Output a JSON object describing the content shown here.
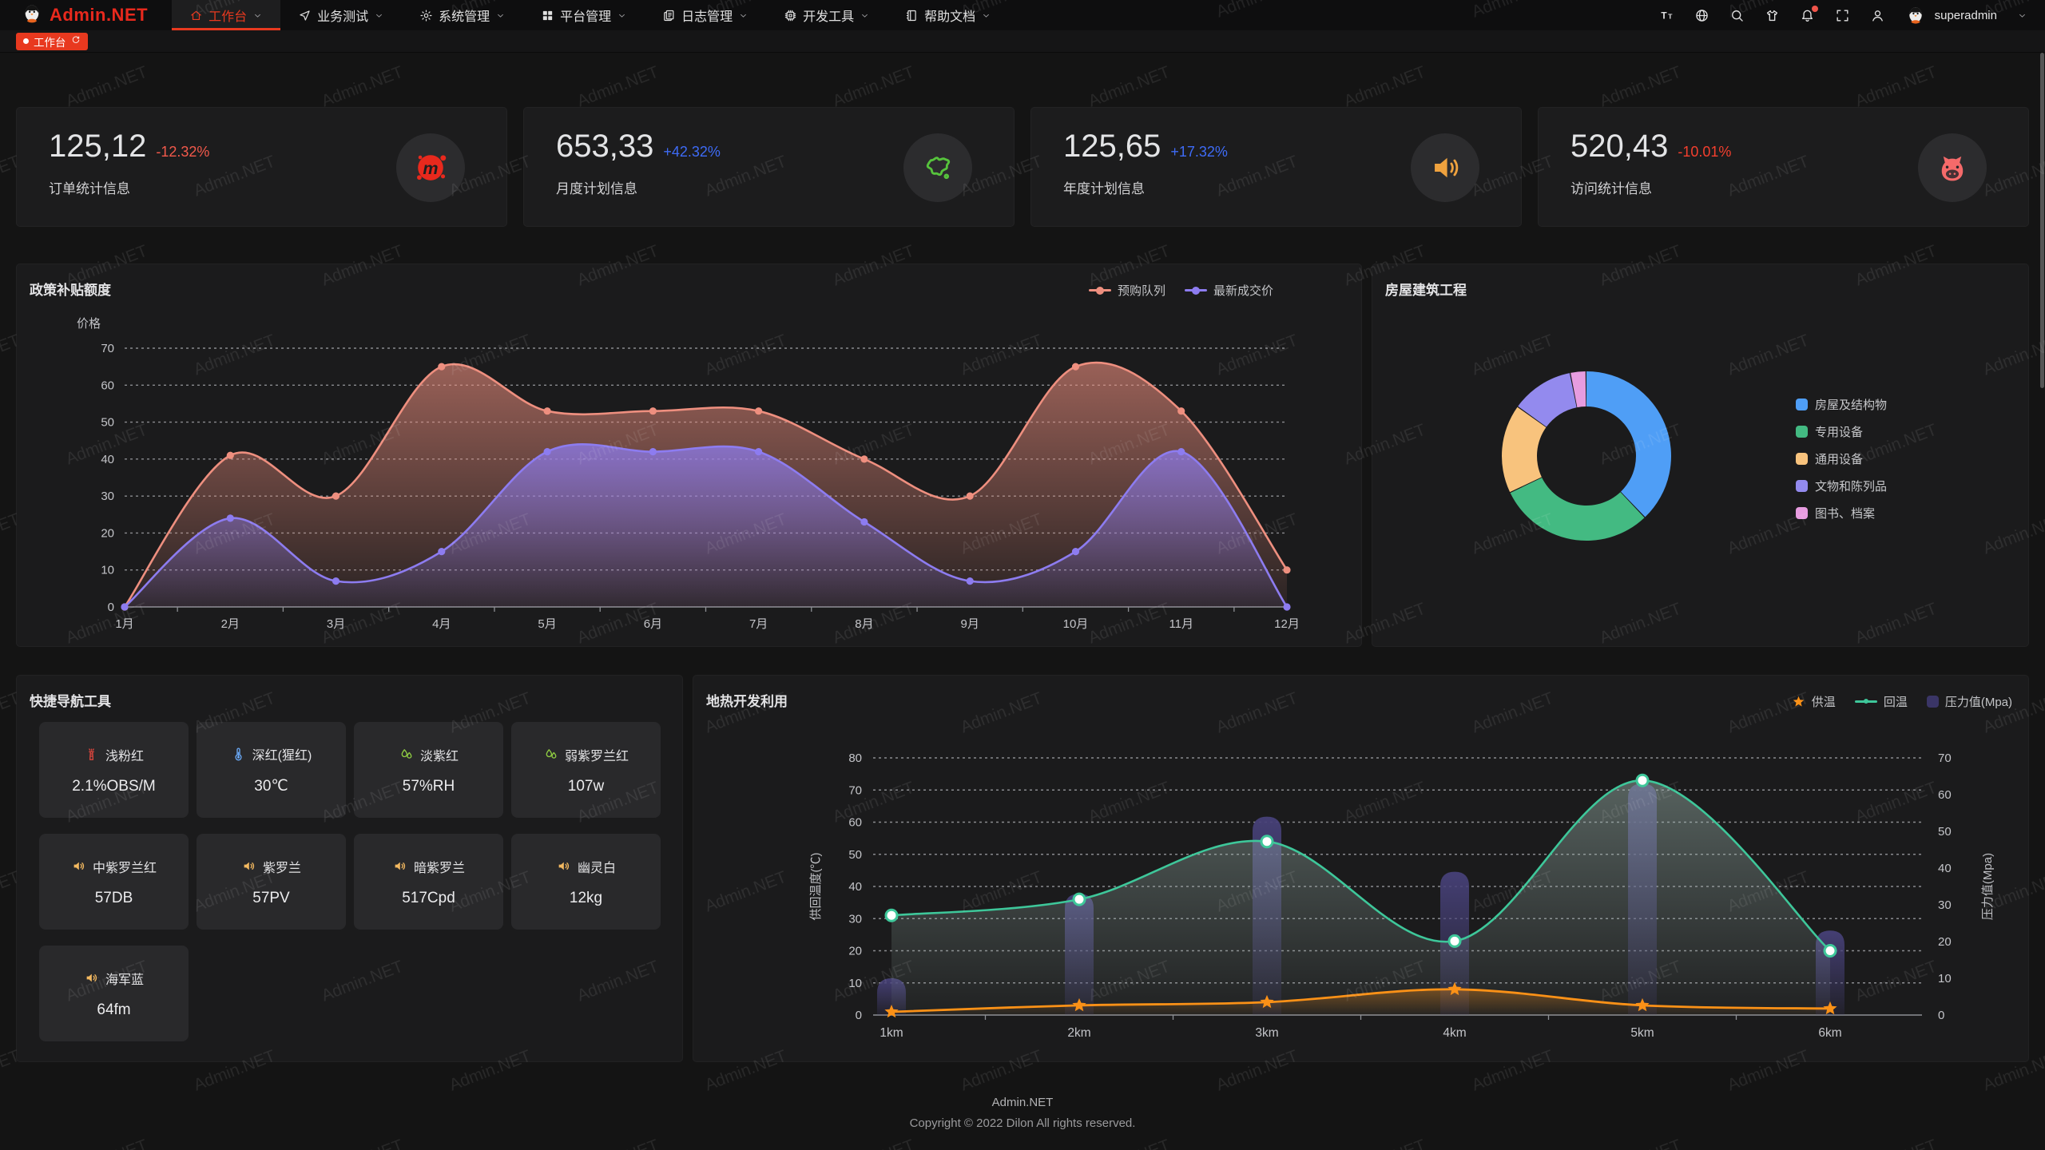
{
  "header": {
    "logo_text": "Admin.NET",
    "menu": [
      {
        "label": "工作台",
        "icon": "home-icon",
        "active": true
      },
      {
        "label": "业务测试",
        "icon": "navigation-icon",
        "active": false
      },
      {
        "label": "系统管理",
        "icon": "gear-icon",
        "active": false
      },
      {
        "label": "平台管理",
        "icon": "grid-icon",
        "active": false
      },
      {
        "label": "日志管理",
        "icon": "document-icon",
        "active": false
      },
      {
        "label": "开发工具",
        "icon": "cpu-icon",
        "active": false
      },
      {
        "label": "帮助文档",
        "icon": "notebook-icon",
        "active": false
      }
    ],
    "toolbar_icons": [
      "font-size-icon",
      "language-icon",
      "search-icon",
      "theme-icon",
      "bell-icon",
      "fullscreen-icon",
      "user-icon"
    ],
    "notification_badge": true,
    "username": "superadmin"
  },
  "tabbar": {
    "tabs": [
      {
        "label": "工作台",
        "active": true
      }
    ]
  },
  "stats": [
    {
      "value": "125,12",
      "delta": "-12.32%",
      "delta_color": "#f2594b",
      "label": "订单统计信息",
      "icon": "meetup-icon",
      "icon_color": "#e8291d"
    },
    {
      "value": "653,33",
      "delta": "+42.32%",
      "delta_color": "#3e6bf6",
      "label": "月度计划信息",
      "icon": "china-map-icon",
      "icon_color": "#56c33c"
    },
    {
      "value": "125,65",
      "delta": "+17.32%",
      "delta_color": "#3e6bf6",
      "label": "年度计划信息",
      "icon": "speaker-icon",
      "icon_color": "#efa23e"
    },
    {
      "value": "520,43",
      "delta": "-10.01%",
      "delta_color": "#f43f2e",
      "label": "访问统计信息",
      "icon": "cat-icon",
      "icon_color": "#f56a6a"
    }
  ],
  "chart_data": [
    {
      "id": "policy",
      "type": "line",
      "title": "政策补贴额度",
      "y_axis_name": "价格",
      "ylim": [
        0,
        70
      ],
      "y_ticks": [
        0,
        10,
        20,
        30,
        40,
        50,
        60,
        70
      ],
      "grid": "dashed",
      "legend_position": "top-right",
      "categories": [
        "1月",
        "2月",
        "3月",
        "4月",
        "5月",
        "6月",
        "7月",
        "8月",
        "9月",
        "10月",
        "11月",
        "12月"
      ],
      "series": [
        {
          "name": "预购队列",
          "color": "#ee8f7f",
          "smooth": true,
          "area": true,
          "values": [
            0,
            41,
            30,
            65,
            53,
            53,
            53,
            40,
            30,
            65,
            53,
            10
          ]
        },
        {
          "name": "最新成交价",
          "color": "#8d7cf0",
          "smooth": true,
          "area": true,
          "values": [
            0,
            24,
            7,
            15,
            42,
            42,
            42,
            23,
            7,
            15,
            42,
            0
          ]
        }
      ]
    },
    {
      "id": "housing",
      "type": "pie",
      "title": "房屋建筑工程",
      "donut": true,
      "legend_position": "right",
      "items": [
        {
          "name": "房屋及结构物",
          "value": 38,
          "color": "#4f9ef6"
        },
        {
          "name": "专用设备",
          "value": 30,
          "color": "#43ba82"
        },
        {
          "name": "通用设备",
          "value": 17,
          "color": "#f8c37d"
        },
        {
          "name": "文物和陈列品",
          "value": 12,
          "color": "#938aee"
        },
        {
          "name": "图书、档案",
          "value": 3,
          "color": "#e79ce0"
        }
      ]
    },
    {
      "id": "geothermal",
      "type": "line+bar",
      "title": "地热开发利用",
      "categories": [
        "1km",
        "2km",
        "3km",
        "4km",
        "5km",
        "6km"
      ],
      "left_axis": {
        "name": "供回温度(℃)",
        "min": 0,
        "max": 80,
        "ticks": [
          0,
          10,
          20,
          30,
          40,
          50,
          60,
          70,
          80
        ]
      },
      "right_axis": {
        "name": "压力值(Mpa)",
        "min": 0,
        "max": 70,
        "ticks": [
          0,
          10,
          20,
          30,
          40,
          50,
          60,
          70
        ]
      },
      "grid": "dashed",
      "legend_position": "top-right",
      "series": [
        {
          "name": "供温",
          "type": "line",
          "marker": "star",
          "axis": "left",
          "color": "#fb9117",
          "values": [
            1,
            3,
            4,
            8,
            3,
            2
          ]
        },
        {
          "name": "回温",
          "type": "line",
          "marker": "circle",
          "axis": "left",
          "color": "#3ec79a",
          "values": [
            31,
            36,
            54,
            23,
            73,
            20
          ]
        },
        {
          "name": "压力值(Mpa)",
          "type": "bar",
          "axis": "right",
          "color": "#3a3566",
          "values": [
            10,
            33,
            54,
            39,
            63,
            23
          ]
        }
      ]
    }
  ],
  "quick_nav": {
    "title": "快捷导航工具",
    "items": [
      {
        "icon": "chimney-icon",
        "color": "#d9453c",
        "name": "浅粉红",
        "value": "2.1%OBS/M"
      },
      {
        "icon": "thermometer-icon",
        "color": "#6aa9f7",
        "name": "深红(猩红)",
        "value": "30℃"
      },
      {
        "icon": "waterdrops-icon",
        "color": "#8fcc42",
        "name": "淡紫红",
        "value": "57%RH"
      },
      {
        "icon": "waterdrops-icon",
        "color": "#8fcc42",
        "name": "弱紫罗兰红",
        "value": "107w"
      },
      {
        "icon": "speaker-sm-icon",
        "color": "#f2b860",
        "name": "中紫罗兰红",
        "value": "57DB"
      },
      {
        "icon": "speaker-sm-icon",
        "color": "#f2b860",
        "name": "紫罗兰",
        "value": "57PV"
      },
      {
        "icon": "speaker-sm-icon",
        "color": "#f2b860",
        "name": "暗紫罗兰",
        "value": "517Cpd"
      },
      {
        "icon": "speaker-sm-icon",
        "color": "#f2b860",
        "name": "幽灵白",
        "value": "12kg"
      },
      {
        "icon": "speaker-sm-icon",
        "color": "#f2b860",
        "name": "海军蓝",
        "value": "64fm"
      }
    ]
  },
  "footer": {
    "app": "Admin.NET",
    "copyright": "Copyright © 2022 Dilon All rights reserved."
  },
  "watermark": "Admin.NET"
}
